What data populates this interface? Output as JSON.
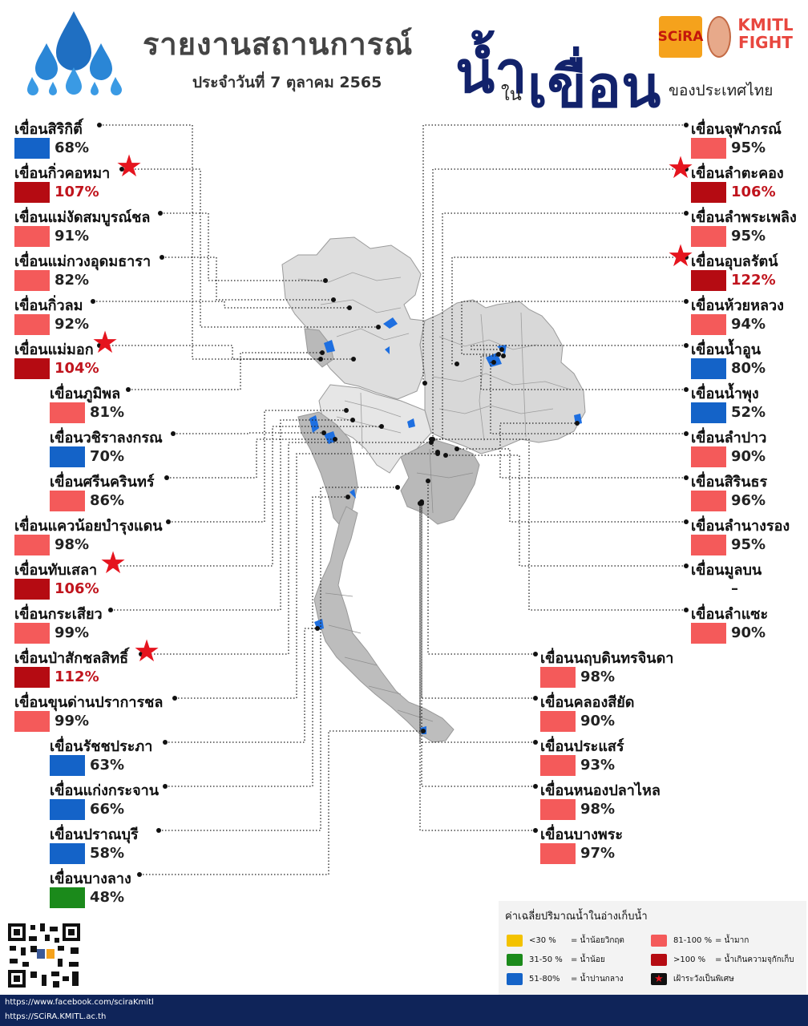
{
  "header": {
    "title": "รายงานสถานการณ์",
    "date": "ประจำวันที่   7  ตุลาคม  2565",
    "word_water": "น้ำ",
    "word_in": "ใน",
    "word_dam": "เขื่อน",
    "word_country": "ของประเทศไทย",
    "partner_scira": "SCiRA",
    "partner_fight": "KMITL FIGHT"
  },
  "colors": {
    "critical": "#f3c200",
    "low": "#1b8a1b",
    "medium": "#1463c8",
    "high": "#f45a5a",
    "over": "#b50b12",
    "map_fill": "#d3d3d3",
    "reservoir": "#1e6fe0",
    "footer": "#0f2459"
  },
  "dams_left": [
    {
      "name": "เขื่อนสิริกิติ์",
      "value": "68%",
      "level": "medium"
    },
    {
      "name": "เขื่อนกิ่วคอหมา",
      "value": "107%",
      "level": "over"
    },
    {
      "name": "เขื่อนแม่งัดสมบูรณ์ชล",
      "value": "91%",
      "level": "high"
    },
    {
      "name": "เขื่อนแม่กวงอุดมธารา",
      "value": "82%",
      "level": "high"
    },
    {
      "name": "เขื่อนกิ่วลม",
      "value": "92%",
      "level": "high"
    },
    {
      "name": "เขื่อนแม่มอก",
      "value": "104%",
      "level": "over"
    },
    {
      "name": "เขื่อนภูมิพล",
      "value": "81%",
      "level": "high"
    },
    {
      "name": "เขื่อนวชิราลงกรณ",
      "value": "70%",
      "level": "medium"
    },
    {
      "name": "เขื่อนศรีนครินทร์",
      "value": "86%",
      "level": "high"
    },
    {
      "name": "เขื่อนแควน้อยบำรุงแดน",
      "value": "98%",
      "level": "high"
    },
    {
      "name": "เขื่อนทับเสลา",
      "value": "106%",
      "level": "over"
    },
    {
      "name": "เขื่อนกระเสียว",
      "value": "99%",
      "level": "high"
    },
    {
      "name": "เขื่อนป่าสักชลสิทธิ์",
      "value": "112%",
      "level": "over"
    },
    {
      "name": "เขื่อนขุนด่านปราการชล",
      "value": "99%",
      "level": "high"
    },
    {
      "name": "เขื่อนรัชชประภา",
      "value": "63%",
      "level": "medium"
    },
    {
      "name": "เขื่อนแก่งกระจาน",
      "value": "66%",
      "level": "medium"
    },
    {
      "name": "เขื่อนปราณบุรี",
      "value": "58%",
      "level": "medium"
    },
    {
      "name": "เขื่อนบางลาง",
      "value": "48%",
      "level": "low"
    }
  ],
  "dams_right": [
    {
      "name": "เขื่อนจุฬาภรณ์",
      "value": "95%",
      "level": "high"
    },
    {
      "name": "เขื่อนลำตะคอง",
      "value": "106%",
      "level": "over"
    },
    {
      "name": "เขื่อนลำพระเพลิง",
      "value": "95%",
      "level": "high"
    },
    {
      "name": "เขื่อนอุบลรัตน์",
      "value": "122%",
      "level": "over"
    },
    {
      "name": "เขื่อนห้วยหลวง",
      "value": "94%",
      "level": "high"
    },
    {
      "name": "เขื่อนน้ำอูน",
      "value": "80%",
      "level": "medium"
    },
    {
      "name": "เขื่อนน้ำพุง",
      "value": "52%",
      "level": "medium"
    },
    {
      "name": "เขื่อนลำปาว",
      "value": "90%",
      "level": "high"
    },
    {
      "name": "เขื่อนสิรินธร",
      "value": "96%",
      "level": "high"
    },
    {
      "name": "เขื่อนลำนางรอง",
      "value": "95%",
      "level": "high"
    },
    {
      "name": "เขื่อนมูลบน",
      "value": "–",
      "level": "none"
    },
    {
      "name": "เขื่อนลำแซะ",
      "value": "90%",
      "level": "high"
    }
  ],
  "dams_bottom": [
    {
      "name": "เขื่อนนฤบดินทรจินดา",
      "value": "98%",
      "level": "high"
    },
    {
      "name": "เขื่อนคลองสียัด",
      "value": "90%",
      "level": "high"
    },
    {
      "name": "เขื่อนประแสร์",
      "value": "93%",
      "level": "high"
    },
    {
      "name": "เขื่อนหนองปลาไหล",
      "value": "98%",
      "level": "high"
    },
    {
      "name": "เขื่อนบางพระ",
      "value": "97%",
      "level": "high"
    }
  ],
  "legend": {
    "title": "ค่าเฉลี่ยปริมาณน้ำในอ่างเก็บน้ำ",
    "items": [
      {
        "range": "<30 %",
        "label": "= น้ำน้อยวิกฤต",
        "level": "critical"
      },
      {
        "range": "31-50 %",
        "label": "= น้ำน้อย",
        "level": "low"
      },
      {
        "range": "51-80%",
        "label": "= น้ำปานกลาง",
        "level": "medium"
      },
      {
        "range": "81-100 %",
        "label": "= น้ำมาก",
        "level": "high"
      },
      {
        "range": ">100 %",
        "label": "= น้ำเกินความจุกักเก็บ",
        "level": "over"
      },
      {
        "range": "",
        "label": "เฝ้าระวังเป็นพิเศษ",
        "level": "star"
      }
    ]
  },
  "footer": {
    "facebook": "https://www.facebook.com/sciraKmitl",
    "website": "https://SCiRA.KMITL.ac.th"
  }
}
